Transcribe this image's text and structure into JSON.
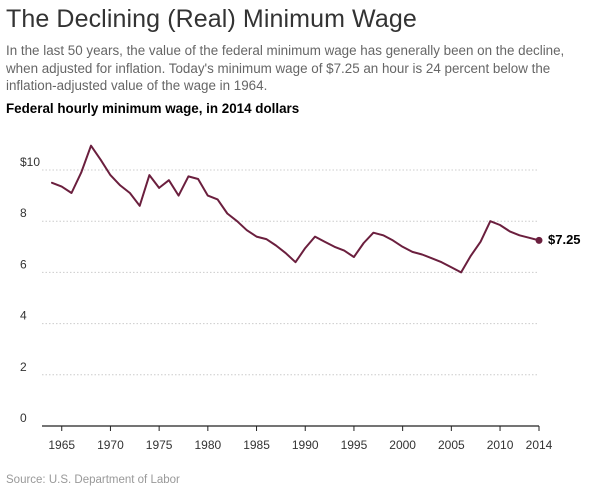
{
  "header": {
    "title": "The Declining (Real) Minimum Wage",
    "subtitle": "In the last 50 years, the value of the federal minimum wage has generally been on the decline, when adjusted for inflation. Today's minimum wage of $7.25 an hour is 24 percent below the inflation-adjusted value of the wage in 1964."
  },
  "chart_heading": "Federal hourly minimum wage, in 2014 dollars",
  "source": "Source: U.S. Department of Labor",
  "chart_data": {
    "type": "line",
    "title": "Federal hourly minimum wage, in 2014 dollars",
    "xlabel": "",
    "ylabel": "",
    "xlim": [
      1964,
      2014
    ],
    "ylim": [
      0,
      12
    ],
    "x_ticks": [
      1965,
      1970,
      1975,
      1980,
      1985,
      1990,
      1995,
      2000,
      2005,
      2010,
      2014
    ],
    "y_ticks": [
      {
        "value": 0,
        "label": "0"
      },
      {
        "value": 2,
        "label": "2"
      },
      {
        "value": 4,
        "label": "4"
      },
      {
        "value": 6,
        "label": "6"
      },
      {
        "value": 8,
        "label": "8"
      },
      {
        "value": 10,
        "label": "$10"
      }
    ],
    "grid": "horizontal",
    "line_color": "#6b1f3e",
    "end_label": "$7.25",
    "series": [
      {
        "x": [
          1964,
          1965,
          1966,
          1967,
          1968,
          1969,
          1970,
          1971,
          1972,
          1973,
          1974,
          1975,
          1976,
          1977,
          1978,
          1979,
          1980,
          1981,
          1982,
          1983,
          1984,
          1985,
          1986,
          1987,
          1988,
          1989,
          1990,
          1991,
          1992,
          1993,
          1994,
          1995,
          1996,
          1997,
          1998,
          1999,
          2000,
          2001,
          2002,
          2003,
          2004,
          2005,
          2006,
          2007,
          2008,
          2009,
          2010,
          2011,
          2012,
          2013,
          2014
        ],
        "values": [
          9.5,
          9.35,
          9.1,
          9.9,
          10.95,
          10.4,
          9.8,
          9.4,
          9.1,
          8.6,
          9.8,
          9.3,
          9.6,
          9.0,
          9.75,
          9.65,
          9.0,
          8.85,
          8.3,
          8.0,
          7.65,
          7.4,
          7.3,
          7.05,
          6.75,
          6.4,
          6.95,
          7.4,
          7.2,
          7.0,
          6.85,
          6.6,
          7.15,
          7.55,
          7.45,
          7.25,
          7.0,
          6.8,
          6.7,
          6.55,
          6.4,
          6.2,
          6.0,
          6.65,
          7.2,
          8.0,
          7.85,
          7.6,
          7.45,
          7.35,
          7.25
        ]
      }
    ]
  }
}
